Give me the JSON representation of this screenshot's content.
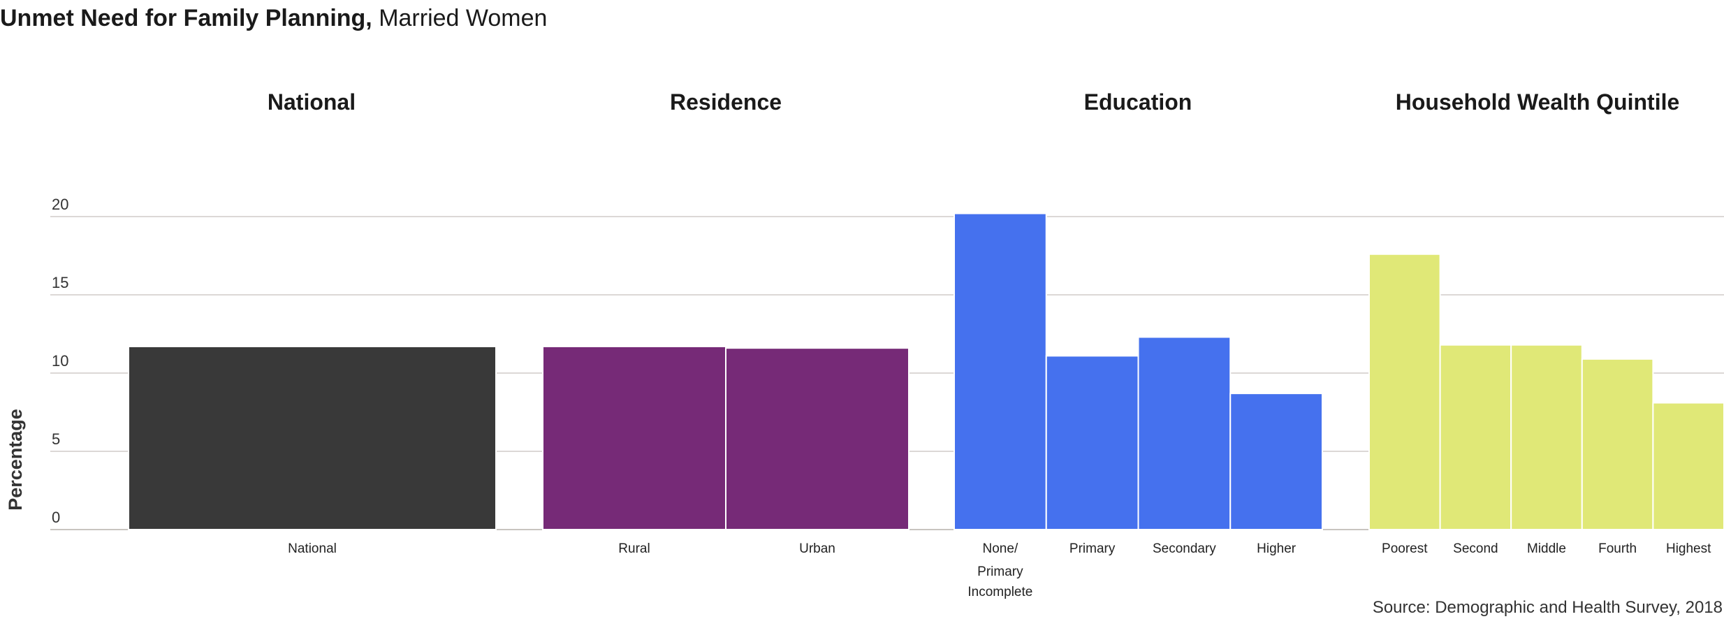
{
  "title": {
    "bold": "Unmet Need for Family Planning,",
    "normal": " Married Women"
  },
  "source": "Source: Demographic and Health Survey, 2018",
  "chart_data": {
    "type": "bar",
    "title": "Unmet Need for Family Planning, Married Women",
    "ylabel": "Percentage",
    "ylim": [
      0,
      20
    ],
    "yticks": [
      0,
      5,
      10,
      15,
      20
    ],
    "grid": true,
    "groups": [
      {
        "name": "National",
        "color": "#393939",
        "categories": [
          "National"
        ],
        "values": [
          11.7
        ]
      },
      {
        "name": "Residence",
        "color": "#762a77",
        "categories": [
          "Rural",
          "Urban"
        ],
        "values": [
          11.7,
          11.6
        ]
      },
      {
        "name": "Education",
        "color": "#4571ee",
        "categories": [
          "None/\nPrimary\nIncomplete",
          "Primary",
          "Secondary",
          "Higher"
        ],
        "values": [
          20.2,
          11.1,
          12.3,
          8.7
        ]
      },
      {
        "name": "Household Wealth Quintile",
        "color": "#e0e877",
        "categories": [
          "Poorest",
          "Second",
          "Middle",
          "Fourth",
          "Highest"
        ],
        "values": [
          17.6,
          11.8,
          11.8,
          10.9,
          8.1
        ]
      }
    ]
  }
}
